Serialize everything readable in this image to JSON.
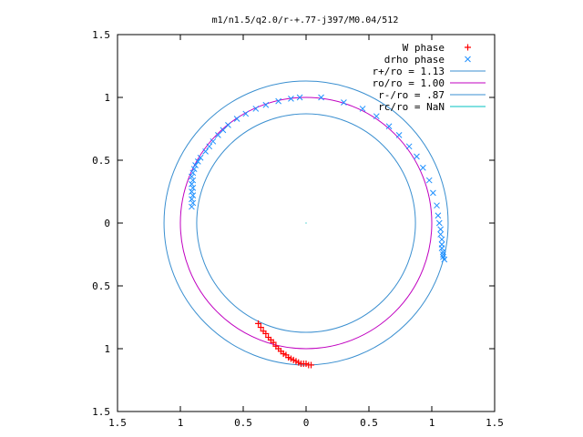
{
  "chart_data": {
    "type": "scatter",
    "title": "m1/n1.5/q2.0/r-+.77-j397/M0.04/512",
    "xlim": [
      -1.5,
      1.5
    ],
    "ylim": [
      -1.5,
      1.5
    ],
    "xticks": [
      {
        "v": -1.5,
        "label": "1.5"
      },
      {
        "v": -1,
        "label": "1"
      },
      {
        "v": -0.5,
        "label": "0.5"
      },
      {
        "v": 0,
        "label": "0"
      },
      {
        "v": 0.5,
        "label": "0.5"
      },
      {
        "v": 1,
        "label": "1"
      },
      {
        "v": 1.5,
        "label": "1.5"
      }
    ],
    "yticks": [
      {
        "v": 1.5,
        "label": "1.5"
      },
      {
        "v": 1,
        "label": "1"
      },
      {
        "v": 0.5,
        "label": "0.5"
      },
      {
        "v": 0,
        "label": "0"
      },
      {
        "v": -0.5,
        "label": "0.5"
      },
      {
        "v": -1,
        "label": "1"
      },
      {
        "v": -1.5,
        "label": "1.5"
      }
    ],
    "grid": false,
    "legend_position": "top-right",
    "legend": [
      {
        "label": "W phase",
        "marker": "plus",
        "color": "#ff0000"
      },
      {
        "label": "drho phase",
        "marker": "cross",
        "color": "#1e90ff"
      },
      {
        "label": "r+/ro = 1.13",
        "marker": "line",
        "color": "#3a8fd0"
      },
      {
        "label": "ro/ro = 1.00",
        "marker": "line",
        "color": "#c000c0"
      },
      {
        "label": "r-/ro = .87",
        "marker": "line",
        "color": "#3a8fd0"
      },
      {
        "label": "rc/ro = NaN",
        "marker": "line",
        "color": "#00c0c0"
      }
    ],
    "circles": [
      {
        "name": "r+/ro",
        "r": 1.13,
        "color": "#3a8fd0"
      },
      {
        "name": "ro/ro",
        "r": 1.0,
        "color": "#c000c0"
      },
      {
        "name": "r-/ro",
        "r": 0.87,
        "color": "#3a8fd0"
      }
    ],
    "series": [
      {
        "name": "W phase",
        "marker": "plus",
        "color": "#ff0000",
        "x": [
          -0.38,
          -0.36,
          -0.34,
          -0.32,
          -0.3,
          -0.28,
          -0.26,
          -0.24,
          -0.22,
          -0.2,
          -0.18,
          -0.16,
          -0.14,
          -0.12,
          -0.1,
          -0.08,
          -0.06,
          -0.04,
          -0.02,
          0.0,
          0.02,
          0.04
        ],
        "y": [
          -0.8,
          -0.83,
          -0.86,
          -0.88,
          -0.91,
          -0.93,
          -0.95,
          -0.98,
          -1.0,
          -1.02,
          -1.04,
          -1.05,
          -1.07,
          -1.08,
          -1.09,
          -1.1,
          -1.11,
          -1.12,
          -1.12,
          -1.12,
          -1.13,
          -1.13
        ]
      },
      {
        "name": "drho phase",
        "marker": "cross",
        "color": "#1e90ff",
        "x": [
          -0.91,
          -0.9,
          -0.91,
          -0.9,
          -0.91,
          -0.9,
          -0.91,
          -0.9,
          -0.91,
          -0.9,
          -0.89,
          -0.88,
          -0.86,
          -0.84,
          -0.8,
          -0.77,
          -0.74,
          -0.7,
          -0.66,
          -0.62,
          -0.55,
          -0.48,
          -0.4,
          -0.32,
          -0.22,
          -0.12,
          -0.05,
          0.12,
          0.3,
          0.45,
          0.56,
          0.66,
          0.74,
          0.82,
          0.88,
          0.93,
          0.98,
          1.01,
          1.04,
          1.05,
          1.06,
          1.07,
          1.07,
          1.08,
          1.08,
          1.08,
          1.09,
          1.09,
          1.09,
          1.1
        ],
        "y": [
          0.13,
          0.16,
          0.19,
          0.22,
          0.25,
          0.28,
          0.31,
          0.34,
          0.37,
          0.4,
          0.43,
          0.46,
          0.49,
          0.52,
          0.57,
          0.61,
          0.65,
          0.7,
          0.74,
          0.78,
          0.83,
          0.87,
          0.91,
          0.94,
          0.97,
          0.99,
          1.0,
          1.0,
          0.96,
          0.91,
          0.85,
          0.77,
          0.7,
          0.61,
          0.53,
          0.44,
          0.34,
          0.24,
          0.14,
          0.06,
          0.0,
          -0.05,
          -0.09,
          -0.13,
          -0.17,
          -0.2,
          -0.23,
          -0.25,
          -0.27,
          -0.29
        ]
      }
    ]
  }
}
